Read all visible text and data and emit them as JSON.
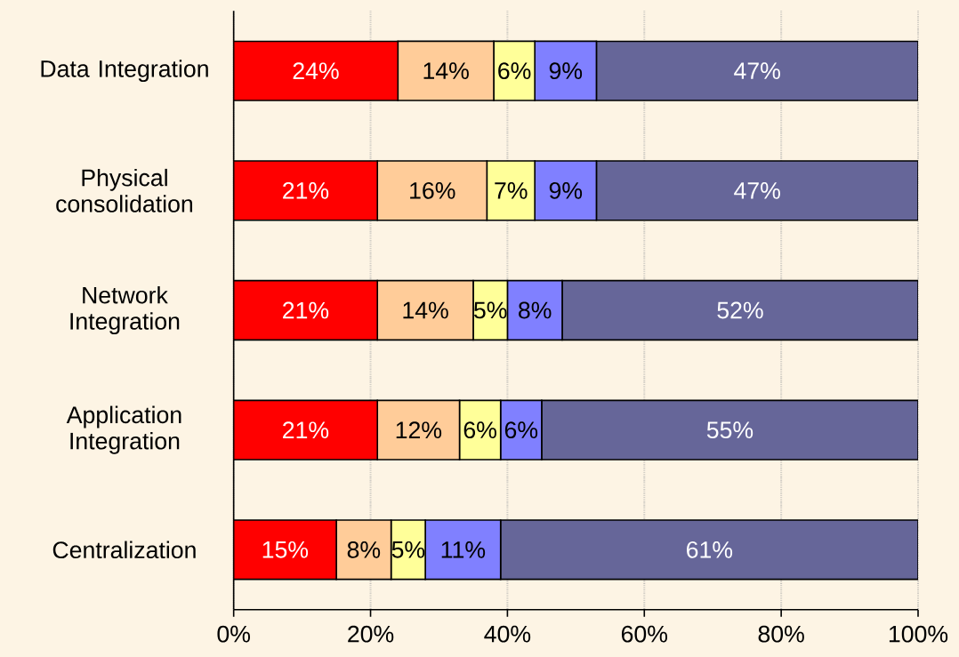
{
  "chart_data": {
    "type": "bar",
    "orientation": "horizontal",
    "stacked": true,
    "grid": "x",
    "categories": [
      "Data Integration",
      "Physical consolidation",
      "Network Integration",
      "Application Integration",
      "Centralization"
    ],
    "xlim": [
      0,
      100
    ],
    "xticks": [
      {
        "value": 0,
        "label": "0%"
      },
      {
        "value": 20,
        "label": "20%"
      },
      {
        "value": 40,
        "label": "40%"
      },
      {
        "value": 60,
        "label": "60%"
      },
      {
        "value": 80,
        "label": "80%"
      },
      {
        "value": 100,
        "label": "100%"
      }
    ],
    "series": [
      {
        "color": "#ff0000",
        "values": [
          24,
          21,
          21,
          21,
          15
        ],
        "value_labels": [
          "24%",
          "21%",
          "21%",
          "21%",
          "15%"
        ]
      },
      {
        "color": "#ffcc99",
        "values": [
          14,
          16,
          14,
          12,
          8
        ],
        "value_labels": [
          "14%",
          "16%",
          "14%",
          "12%",
          "8%"
        ]
      },
      {
        "color": "#ffff99",
        "values": [
          6,
          7,
          5,
          6,
          5
        ],
        "value_labels": [
          "6%",
          "7%",
          "5%",
          "6%",
          "5%"
        ]
      },
      {
        "color": "#8080ff",
        "values": [
          9,
          9,
          8,
          6,
          11
        ],
        "value_labels": [
          "9%",
          "9%",
          "8%",
          "6%",
          "11%"
        ]
      },
      {
        "color": "#666699",
        "values": [
          47,
          47,
          52,
          55,
          61
        ],
        "value_labels": [
          "47%",
          "47%",
          "52%",
          "55%",
          "61%"
        ]
      }
    ]
  }
}
